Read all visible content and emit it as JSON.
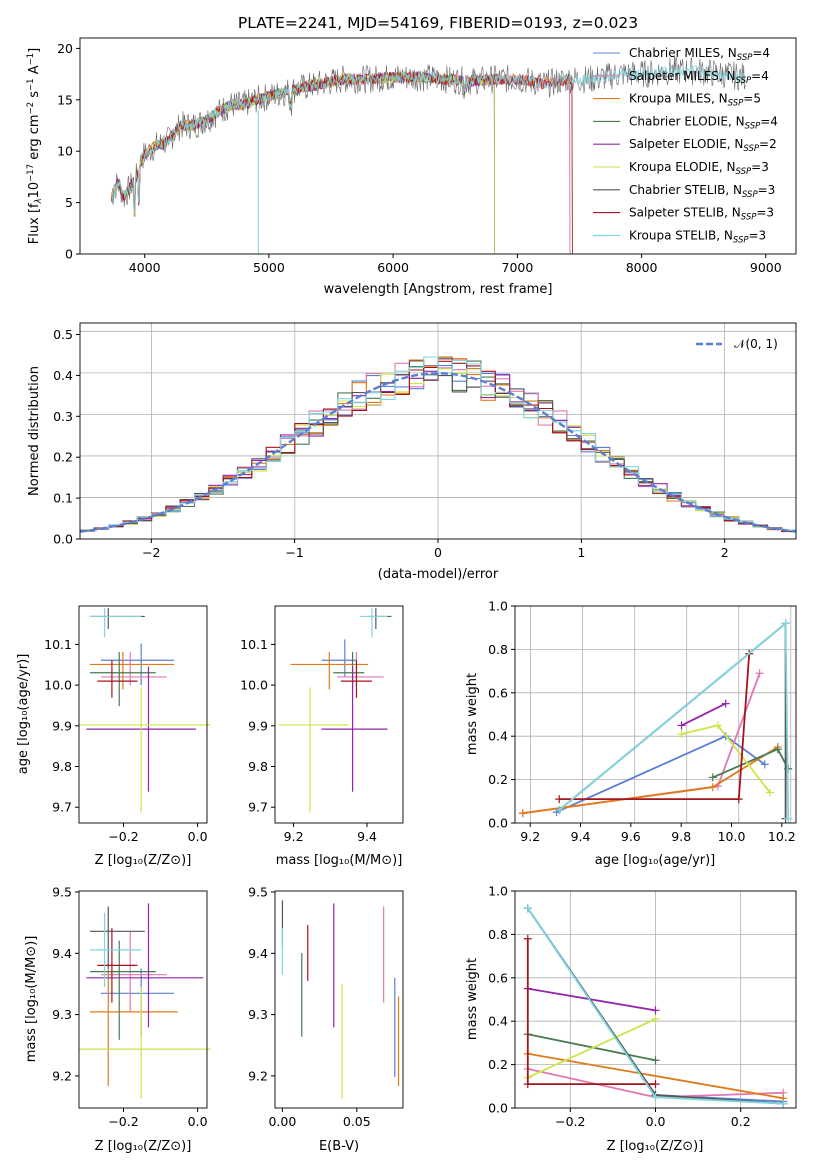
{
  "title": "PLATE=2241, MJD=54169, FIBERID=0193, z=0.023",
  "colors": {
    "Chabrier MILES": "#5b7fd6",
    "Salpeter MILES": "#e178b4",
    "Kroupa MILES": "#e07b1a",
    "Chabrier ELODIE": "#4a7a50",
    "Salpeter ELODIE": "#9225aa",
    "Kroupa ELODIE": "#cfe34a",
    "Chabrier STELIB": "#555555",
    "Salpeter STELIB": "#a4141c",
    "Kroupa STELIB": "#7fd6de"
  },
  "legend": [
    {
      "name": "Chabrier MILES",
      "nssp": "4"
    },
    {
      "name": "Salpeter MILES",
      "nssp": "4"
    },
    {
      "name": "Kroupa MILES",
      "nssp": "5"
    },
    {
      "name": "Chabrier ELODIE",
      "nssp": "4"
    },
    {
      "name": "Salpeter ELODIE",
      "nssp": "2"
    },
    {
      "name": "Kroupa ELODIE",
      "nssp": "3"
    },
    {
      "name": "Chabrier STELIB",
      "nssp": "3"
    },
    {
      "name": "Salpeter STELIB",
      "nssp": "3"
    },
    {
      "name": "Kroupa STELIB",
      "nssp": "3"
    }
  ],
  "panel_spectrum": {
    "xlabel": "wavelength [Angstrom, rest frame]",
    "ylabel_pre": "Flux [f",
    "ylabel_mid": "10",
    "ylabel_exp1": "−17",
    "ylabel_unit": " erg cm",
    "ylabel_exp2": "−2",
    "ylabel_s": " s",
    "ylabel_exp3": "−1",
    "ylabel_A": " A",
    "ylabel_exp4": "−1",
    "ylabel_end": "]",
    "xticks": [
      "4000",
      "5000",
      "6000",
      "7000",
      "8000",
      "9000"
    ],
    "yticks": [
      "0",
      "5",
      "10",
      "15",
      "20"
    ]
  },
  "panel_hist": {
    "xlabel": "(data-model)/error",
    "ylabel": "Normed distribution",
    "legend_label": "𝒩(0, 1)",
    "xticks": [
      "−2",
      "−1",
      "0",
      "1",
      "2"
    ],
    "yticks": [
      "0.0",
      "0.1",
      "0.2",
      "0.3",
      "0.4",
      "0.5"
    ]
  },
  "panel_age_z": {
    "xlabel": "Z [log₁₀(Z/Z⊙)]",
    "ylabel": "age  [log₁₀(age/yr)]",
    "xticks": [
      "−0.2",
      "0.0"
    ],
    "yticks": [
      "9.7",
      "9.8",
      "9.9",
      "10.0",
      "10.1"
    ]
  },
  "panel_age_mass": {
    "xlabel": "mass [log₁₀(M/M⊙)]",
    "xticks": [
      "9.2",
      "9.4"
    ],
    "yticks": [
      "9.7",
      "9.8",
      "9.9",
      "10.0",
      "10.1"
    ]
  },
  "panel_mw_age": {
    "xlabel": "age  [log₁₀(age/yr)]",
    "ylabel": "mass weight",
    "xticks": [
      "9.2",
      "9.4",
      "9.6",
      "9.8",
      "10.0",
      "10.2"
    ],
    "yticks": [
      "0.0",
      "0.2",
      "0.4",
      "0.6",
      "0.8",
      "1.0"
    ]
  },
  "panel_mass_z": {
    "xlabel": "Z [log₁₀(Z/Z⊙)]",
    "ylabel": "mass [log₁₀(M/M⊙)]",
    "xticks": [
      "−0.2",
      "0.0"
    ],
    "yticks": [
      "9.2",
      "9.3",
      "9.4",
      "9.5"
    ]
  },
  "panel_mass_ebv": {
    "xlabel": "E(B-V)",
    "xticks": [
      "0.00",
      "0.05"
    ],
    "yticks": [
      "9.2",
      "9.3",
      "9.4",
      "9.5"
    ]
  },
  "panel_mw_z": {
    "xlabel": "Z [log₁₀(Z/Z⊙)]",
    "ylabel": "mass weight",
    "xticks": [
      "−0.2",
      "0.0",
      "0.2"
    ],
    "yticks": [
      "0.0",
      "0.2",
      "0.4",
      "0.6",
      "0.8",
      "1.0"
    ]
  },
  "chart_data": [
    {
      "type": "line",
      "title": "PLATE=2241, MJD=54169, FIBERID=0193, z=0.023",
      "xlabel": "wavelength [Angstrom, rest frame]",
      "ylabel": "Flux [fλ 10^-17 erg cm^-2 s^-1 A^-1]",
      "xlim": [
        3500,
        9200
      ],
      "ylim": [
        0,
        21
      ],
      "series_continuum": {
        "x": [
          3750,
          3800,
          3850,
          3900,
          3950,
          4000,
          4100,
          4200,
          4300,
          4400,
          4500,
          4600,
          4700,
          4800,
          4900,
          5000,
          5200,
          5400,
          5600,
          5800,
          6000,
          6200,
          6400,
          6600,
          6800,
          7000,
          7200,
          7400,
          7600,
          7800,
          8000,
          8200,
          8400,
          8600,
          8800
        ],
        "y": [
          5.5,
          7,
          5.5,
          6.5,
          7.5,
          9.5,
          10.5,
          11,
          12.5,
          12.5,
          13,
          13.8,
          14.5,
          14.5,
          15,
          15.3,
          16,
          16.5,
          17,
          17,
          17.2,
          17.2,
          17,
          16.8,
          17,
          17,
          16.5,
          17,
          17,
          17.5,
          17.5,
          17.8,
          17.8,
          17.5,
          17.2
        ]
      },
      "cutoffs": [
        {
          "name": "Chabrier MILES",
          "end": 7400
        },
        {
          "name": "Salpeter MILES",
          "end": 7400
        },
        {
          "name": "Kroupa MILES",
          "end": 7420
        },
        {
          "name": "Chabrier ELODIE",
          "end": 6800
        },
        {
          "name": "Salpeter ELODIE",
          "end": 6800
        },
        {
          "name": "Kroupa ELODIE",
          "end": 6800
        },
        {
          "name": "Chabrier STELIB",
          "end": 8800
        },
        {
          "name": "Salpeter STELIB",
          "end": 7420
        },
        {
          "name": "Kroupa STELIB",
          "end": 8800
        }
      ]
    },
    {
      "type": "bar",
      "title": "",
      "xlabel": "(data-model)/error",
      "ylabel": "Normed distribution",
      "xlim": [
        -2.5,
        2.5
      ],
      "ylim": [
        0,
        0.52
      ],
      "bin_width": 0.1,
      "reference_curve": "N(0,1)"
    },
    {
      "type": "scatter",
      "xlabel": "Z [log10(Z/Z⊙)]",
      "ylabel": "age [log10(age/yr)]",
      "xlim": [
        -0.33,
        0.02
      ],
      "ylim": [
        9.66,
        10.18
      ],
      "points": [
        {
          "series": "Chabrier MILES",
          "x": -0.16,
          "y": 10.05,
          "xerr": [
            0.11,
            0.09
          ],
          "yerr": [
            0.06,
            0.04
          ]
        },
        {
          "series": "Salpeter MILES",
          "x": -0.19,
          "y": 10.01,
          "xerr": [
            0.08,
            0.1
          ],
          "yerr": [
            0.02,
            0.06
          ]
        },
        {
          "series": "Kroupa MILES",
          "x": -0.21,
          "y": 10.04,
          "xerr": [
            0.09,
            0.14
          ],
          "yerr": [
            0.06,
            0.03
          ]
        },
        {
          "series": "Chabrier ELODIE",
          "x": -0.22,
          "y": 10.02,
          "xerr": [
            0.08,
            0.1
          ],
          "yerr": [
            0.08,
            0.05
          ]
        },
        {
          "series": "Salpeter ELODIE",
          "x": -0.14,
          "y": 9.885,
          "xerr": [
            0.17,
            0.13
          ],
          "yerr": [
            0.15,
            0.15
          ]
        },
        {
          "series": "Kroupa ELODIE",
          "x": -0.16,
          "y": 9.895,
          "xerr": [
            0.17,
            0.19
          ],
          "yerr": [
            0.21,
            0.09
          ]
        },
        {
          "series": "Chabrier STELIB",
          "x": -0.25,
          "y": 10.155,
          "xerr": [
            0.05,
            0.1
          ],
          "yerr": [
            0.03,
            0.02
          ]
        },
        {
          "series": "Salpeter STELIB",
          "x": -0.24,
          "y": 10.0,
          "xerr": [
            0.04,
            0.07
          ],
          "yerr": [
            0.04,
            0.05
          ]
        },
        {
          "series": "Kroupa STELIB",
          "x": -0.26,
          "y": 10.155,
          "xerr": [
            0.04,
            0.1
          ],
          "yerr": [
            0.05,
            0.02
          ]
        }
      ]
    },
    {
      "type": "scatter",
      "xlabel": "mass [log10(M/M⊙)]",
      "ylabel": "",
      "xlim": [
        9.16,
        9.49
      ],
      "ylim": [
        9.66,
        10.18
      ],
      "points": [
        {
          "series": "Chabrier MILES",
          "x": 9.34,
          "y": 10.05,
          "xerr": [
            0.06,
            0.03
          ],
          "yerr": [
            0.04,
            0.05
          ]
        },
        {
          "series": "Salpeter MILES",
          "x": 9.37,
          "y": 10.01,
          "xerr": [
            0.05,
            0.07
          ],
          "yerr": [
            0.02,
            0.06
          ]
        },
        {
          "series": "Kroupa MILES",
          "x": 9.3,
          "y": 10.04,
          "xerr": [
            0.1,
            0.1
          ],
          "yerr": [
            0.06,
            0.03
          ]
        },
        {
          "series": "Chabrier ELODIE",
          "x": 9.36,
          "y": 10.02,
          "xerr": [
            0.05,
            0.03
          ],
          "yerr": [
            0.04,
            0.05
          ]
        },
        {
          "series": "Salpeter ELODIE",
          "x": 9.36,
          "y": 9.885,
          "xerr": [
            0.08,
            0.09
          ],
          "yerr": [
            0.15,
            0.15
          ]
        },
        {
          "series": "Kroupa ELODIE",
          "x": 9.25,
          "y": 9.895,
          "xerr": [
            0.08,
            0.1
          ],
          "yerr": [
            0.21,
            0.09
          ]
        },
        {
          "series": "Chabrier STELIB",
          "x": 9.42,
          "y": 10.155,
          "xerr": [
            0.02,
            0.04
          ],
          "yerr": [
            0.03,
            0.02
          ]
        },
        {
          "series": "Salpeter STELIB",
          "x": 9.37,
          "y": 10.0,
          "xerr": [
            0.04,
            0.04
          ],
          "yerr": [
            0.04,
            0.05
          ]
        },
        {
          "series": "Kroupa STELIB",
          "x": 9.41,
          "y": 10.155,
          "xerr": [
            0.03,
            0.04
          ],
          "yerr": [
            0.05,
            0.02
          ]
        }
      ]
    },
    {
      "type": "line",
      "xlabel": "age [log10(age/yr)]",
      "ylabel": "mass weight",
      "xlim": [
        9.14,
        10.22
      ],
      "ylim": [
        0,
        1
      ],
      "series": [
        {
          "name": "Chabrier MILES",
          "points": [
            [
              9.3,
              0.05
            ],
            [
              9.95,
              0.4
            ],
            [
              10.1,
              0.27
            ]
          ]
        },
        {
          "name": "Salpeter MILES",
          "points": [
            [
              9.17,
              0.045
            ],
            [
              9.92,
              0.17
            ],
            [
              10.08,
              0.69
            ]
          ]
        },
        {
          "name": "Kroupa MILES",
          "points": [
            [
              9.17,
              0.045
            ],
            [
              9.9,
              0.165
            ],
            [
              10.15,
              0.35
            ]
          ]
        },
        {
          "name": "Chabrier ELODIE",
          "points": [
            [
              9.9,
              0.21
            ],
            [
              10.15,
              0.34
            ],
            [
              10.19,
              0.25
            ]
          ]
        },
        {
          "name": "Salpeter ELODIE",
          "points": [
            [
              9.78,
              0.45
            ],
            [
              9.95,
              0.55
            ]
          ]
        },
        {
          "name": "Kroupa ELODIE",
          "points": [
            [
              9.78,
              0.41
            ],
            [
              9.92,
              0.45
            ],
            [
              10.12,
              0.14
            ]
          ]
        },
        {
          "name": "Chabrier STELIB",
          "points": [
            [
              9.31,
              0.06
            ],
            [
              10.18,
              0.92
            ],
            [
              10.18,
              0.02
            ]
          ]
        },
        {
          "name": "Salpeter STELIB",
          "points": [
            [
              9.31,
              0.11
            ],
            [
              10.0,
              0.11
            ],
            [
              10.04,
              0.78
            ]
          ]
        },
        {
          "name": "Kroupa STELIB",
          "points": [
            [
              9.31,
              0.06
            ],
            [
              10.18,
              0.92
            ],
            [
              10.19,
              0.02
            ]
          ]
        }
      ]
    },
    {
      "type": "scatter",
      "xlabel": "Z [log10(Z/Z⊙)]",
      "ylabel": "mass [log10(M/M⊙)]",
      "xlim": [
        -0.33,
        0.02
      ],
      "ylim": [
        9.15,
        9.5
      ],
      "points": [
        {
          "series": "Chabrier MILES",
          "x": -0.16,
          "y": 9.335,
          "xerr": [
            0.11,
            0.09
          ],
          "yerr": [
            0.07,
            0.04
          ]
        },
        {
          "series": "Salpeter MILES",
          "x": -0.19,
          "y": 9.365,
          "xerr": [
            0.08,
            0.1
          ],
          "yerr": [
            0.06,
            0.07
          ]
        },
        {
          "series": "Kroupa MILES",
          "x": -0.25,
          "y": 9.305,
          "xerr": [
            0.05,
            0.19
          ],
          "yerr": [
            0.12,
            0.07
          ]
        },
        {
          "series": "Chabrier ELODIE",
          "x": -0.22,
          "y": 9.37,
          "xerr": [
            0.08,
            0.1
          ],
          "yerr": [
            0.11,
            0.05
          ]
        },
        {
          "series": "Salpeter ELODIE",
          "x": -0.14,
          "y": 9.36,
          "xerr": [
            0.17,
            0.15
          ],
          "yerr": [
            0.08,
            0.12
          ]
        },
        {
          "series": "Kroupa ELODIE",
          "x": -0.16,
          "y": 9.245,
          "xerr": [
            0.17,
            0.19
          ],
          "yerr": [
            0.08,
            0.1
          ]
        },
        {
          "series": "Chabrier STELIB",
          "x": -0.25,
          "y": 9.435,
          "xerr": [
            0.05,
            0.1
          ],
          "yerr": [
            0.06,
            0.04
          ]
        },
        {
          "series": "Salpeter STELIB",
          "x": -0.24,
          "y": 9.38,
          "xerr": [
            0.04,
            0.07
          ],
          "yerr": [
            0.06,
            0.06
          ]
        },
        {
          "series": "Kroupa STELIB",
          "x": -0.26,
          "y": 9.405,
          "xerr": [
            0.04,
            0.1
          ],
          "yerr": [
            0.06,
            0.06
          ]
        }
      ]
    },
    {
      "type": "scatter",
      "xlabel": "E(B-V)",
      "ylabel": "",
      "xlim": [
        -0.005,
        0.081
      ],
      "ylim": [
        9.15,
        9.5
      ],
      "points": [
        {
          "series": "Chabrier MILES",
          "x": 0.0755,
          "y": 9.28,
          "yerr": [
            0.08,
            0.08
          ]
        },
        {
          "series": "Salpeter MILES",
          "x": 0.068,
          "y": 9.4,
          "yerr": [
            0.08,
            0.075
          ]
        },
        {
          "series": "Kroupa MILES",
          "x": 0.078,
          "y": 9.26,
          "yerr": [
            0.075,
            0.07
          ]
        },
        {
          "series": "Chabrier ELODIE",
          "x": 0.013,
          "y": 9.33,
          "yerr": [
            0.065,
            0.07
          ]
        },
        {
          "series": "Salpeter ELODIE",
          "x": 0.0345,
          "y": 9.38,
          "yerr": [
            0.1,
            0.1
          ]
        },
        {
          "series": "Kroupa ELODIE",
          "x": 0.04,
          "y": 9.255,
          "yerr": [
            0.09,
            0.095
          ]
        },
        {
          "series": "Chabrier STELIB",
          "x": 0.0,
          "y": 9.445,
          "yerr": [
            0.035,
            0.04
          ]
        },
        {
          "series": "Salpeter STELIB",
          "x": 0.017,
          "y": 9.4,
          "yerr": [
            0.045,
            0.045
          ]
        },
        {
          "series": "Kroupa STELIB",
          "x": 0.0,
          "y": 9.4,
          "yerr": [
            0.035,
            0.04
          ]
        }
      ]
    },
    {
      "type": "line",
      "xlabel": "Z [log10(Z/Z⊙)]",
      "ylabel": "mass weight",
      "xlim": [
        -0.33,
        0.33
      ],
      "ylim": [
        0,
        1
      ],
      "series": [
        {
          "name": "Chabrier MILES",
          "points": [
            [
              -0.3,
              0.92
            ],
            [
              0.0,
              0.06
            ],
            [
              0.3,
              0.03
            ]
          ]
        },
        {
          "name": "Salpeter MILES",
          "points": [
            [
              -0.3,
              0.18
            ],
            [
              0.0,
              0.05
            ],
            [
              0.3,
              0.07
            ]
          ]
        },
        {
          "name": "Kroupa MILES",
          "points": [
            [
              -0.3,
              0.25
            ],
            [
              0.3,
              0.045
            ]
          ]
        },
        {
          "name": "Chabrier ELODIE",
          "points": [
            [
              -0.3,
              0.34
            ],
            [
              0.0,
              0.22
            ]
          ]
        },
        {
          "name": "Salpeter ELODIE",
          "points": [
            [
              -0.3,
              0.55
            ],
            [
              0.0,
              0.45
            ]
          ]
        },
        {
          "name": "Kroupa ELODIE",
          "points": [
            [
              -0.3,
              0.14
            ],
            [
              0.0,
              0.41
            ]
          ]
        },
        {
          "name": "Chabrier STELIB",
          "points": [
            [
              -0.3,
              0.92
            ],
            [
              0.0,
              0.06
            ],
            [
              0.3,
              0.02
            ]
          ]
        },
        {
          "name": "Salpeter STELIB",
          "points": [
            [
              -0.3,
              0.78
            ],
            [
              -0.3,
              0.11
            ],
            [
              0.0,
              0.11
            ]
          ]
        },
        {
          "name": "Kroupa STELIB",
          "points": [
            [
              -0.3,
              0.92
            ],
            [
              0.0,
              0.05
            ],
            [
              0.3,
              0.02
            ]
          ]
        }
      ]
    }
  ]
}
